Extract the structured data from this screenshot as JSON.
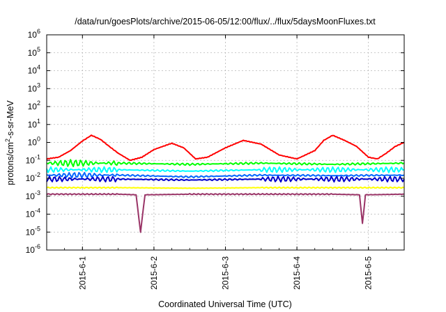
{
  "chart_data": {
    "type": "line",
    "title": "/data/run/goesPlots/archive/2015-06-05/12:00/flux/../flux/5daysMoonFluxes.txt",
    "xlabel": "Coordinated Universal Time (UTC)",
    "ylabel": "protons/cm²-s-sr-MeV",
    "ylabel_parts": {
      "base": "protons/cm",
      "sup": "2",
      "rest": "-s-sr-MeV"
    },
    "xscale": "time",
    "xlim": [
      "2015-05-31 12:00",
      "2015-06-05 12:00"
    ],
    "x_tick_labels": [
      "2015-6-1",
      "2015-6-2",
      "2015-6-3",
      "2015-6-4",
      "2015-6-5"
    ],
    "yscale": "log",
    "ylim": [
      1e-06,
      1000000.0
    ],
    "y_tick_labels": [
      {
        "base": "10",
        "exp": "-6"
      },
      {
        "base": "10",
        "exp": "-5"
      },
      {
        "base": "10",
        "exp": "-4"
      },
      {
        "base": "10",
        "exp": "-3"
      },
      {
        "base": "10",
        "exp": "-2"
      },
      {
        "base": "10",
        "exp": "-1"
      },
      {
        "base": "10",
        "exp": "0"
      },
      {
        "base": "10",
        "exp": "1"
      },
      {
        "base": "10",
        "exp": "2"
      },
      {
        "base": "10",
        "exp": "3"
      },
      {
        "base": "10",
        "exp": "4"
      },
      {
        "base": "10",
        "exp": "5"
      },
      {
        "base": "10",
        "exp": "6"
      }
    ],
    "grid": true,
    "series": [
      {
        "color": "#ff0000",
        "x": [
          "2015-05-31 12:00",
          "2015-05-31 16:00",
          "2015-05-31 20:00",
          "2015-06-01 00:00",
          "2015-06-01 03:00",
          "2015-06-01 06:00",
          "2015-06-01 09:00",
          "2015-06-01 12:00",
          "2015-06-01 16:00",
          "2015-06-01 20:00",
          "2015-06-02 00:00",
          "2015-06-02 06:00",
          "2015-06-02 10:00",
          "2015-06-02 14:00",
          "2015-06-02 18:00",
          "2015-06-03 00:00",
          "2015-06-03 06:00",
          "2015-06-03 12:00",
          "2015-06-03 18:00",
          "2015-06-04 00:00",
          "2015-06-04 06:00",
          "2015-06-04 09:00",
          "2015-06-04 12:00",
          "2015-06-04 16:00",
          "2015-06-04 20:00",
          "2015-06-05 00:00",
          "2015-06-05 03:00",
          "2015-06-05 06:00",
          "2015-06-05 09:00",
          "2015-06-05 12:00"
        ],
        "values": [
          0.12,
          0.15,
          0.35,
          1.2,
          2.5,
          1.5,
          0.6,
          0.25,
          0.1,
          0.15,
          0.4,
          0.9,
          0.5,
          0.12,
          0.15,
          0.5,
          1.3,
          0.8,
          0.2,
          0.12,
          0.35,
          1.3,
          2.5,
          1.3,
          0.6,
          0.15,
          0.12,
          0.25,
          0.6,
          1.0
        ]
      },
      {
        "color": "#00ff00",
        "x": [
          "2015-05-31 12:00",
          "2015-06-01 12:00",
          "2015-06-02 12:00",
          "2015-06-03 12:00",
          "2015-06-04 12:00",
          "2015-06-05 12:00"
        ],
        "values": [
          0.07,
          0.07,
          0.06,
          0.07,
          0.06,
          0.07
        ]
      },
      {
        "color": "#00ffff",
        "x": [
          "2015-05-31 12:00",
          "2015-06-01 12:00",
          "2015-06-02 12:00",
          "2015-06-03 12:00",
          "2015-06-04 12:00",
          "2015-06-05 12:00"
        ],
        "values": [
          0.03,
          0.03,
          0.025,
          0.03,
          0.03,
          0.03
        ]
      },
      {
        "color": "#0066ff",
        "x": [
          "2015-05-31 12:00",
          "2015-06-01 12:00",
          "2015-06-02 12:00",
          "2015-06-03 12:00",
          "2015-06-04 12:00",
          "2015-06-05 12:00"
        ],
        "values": [
          0.015,
          0.015,
          0.012,
          0.015,
          0.014,
          0.015
        ]
      },
      {
        "color": "#0000cc",
        "x": [
          "2015-05-31 12:00",
          "2015-06-01 12:00",
          "2015-06-02 12:00",
          "2015-06-03 12:00",
          "2015-06-04 12:00",
          "2015-06-05 12:00"
        ],
        "values": [
          0.009,
          0.009,
          0.008,
          0.009,
          0.009,
          0.009
        ]
      },
      {
        "color": "#ffff00",
        "x": [
          "2015-05-31 12:00",
          "2015-06-01 12:00",
          "2015-06-02 12:00",
          "2015-06-03 12:00",
          "2015-06-04 12:00",
          "2015-06-05 12:00"
        ],
        "values": [
          0.003,
          0.003,
          0.0028,
          0.003,
          0.003,
          0.003
        ]
      },
      {
        "color": "#993366",
        "x": [
          "2015-05-31 12:00",
          "2015-06-01 12:00",
          "2015-06-01 18:00",
          "2015-06-01 19:30",
          "2015-06-01 21:00",
          "2015-06-02 12:00",
          "2015-06-03 12:00",
          "2015-06-04 12:00",
          "2015-06-04 21:00",
          "2015-06-04 22:00",
          "2015-06-04 23:00",
          "2015-06-05 12:00"
        ],
        "values": [
          0.0013,
          0.0013,
          0.0012,
          1e-05,
          0.0012,
          0.0013,
          0.0013,
          0.0013,
          0.0012,
          3e-05,
          0.0012,
          0.0013
        ]
      }
    ]
  }
}
